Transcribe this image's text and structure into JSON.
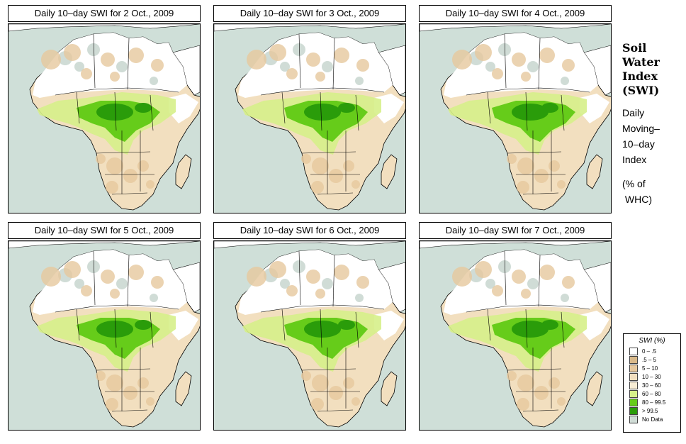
{
  "panels": [
    {
      "title": "Daily 10–day SWI for  2 Oct., 2009"
    },
    {
      "title": "Daily 10–day SWI for  3 Oct., 2009"
    },
    {
      "title": "Daily 10–day SWI for  4 Oct., 2009"
    },
    {
      "title": "Daily 10–day SWI for  5 Oct., 2009"
    },
    {
      "title": "Daily 10–day SWI for  6 Oct., 2009"
    },
    {
      "title": "Daily 10–day SWI for  7 Oct., 2009"
    }
  ],
  "side": {
    "heading_line1": "Soil",
    "heading_line2": "Water",
    "heading_line3": "Index",
    "heading_line4": "(SWI)",
    "desc_line1": "Daily",
    "desc_line2": "Moving–",
    "desc_line3": "10–day",
    "desc_line4": "Index",
    "unit_line1": "(% of",
    "unit_line2": " WHC)"
  },
  "legend": {
    "title": "SWI (%)",
    "items": [
      {
        "label": "0 – .5",
        "color": "#ffffff"
      },
      {
        "label": ".5 – 5",
        "color": "#d9b98a"
      },
      {
        "label": "5 – 10",
        "color": "#e6c89e"
      },
      {
        "label": "10 – 30",
        "color": "#f2dfbf"
      },
      {
        "label": "30 – 60",
        "color": "#f7ecd4"
      },
      {
        "label": "60 – 80",
        "color": "#d6f08a"
      },
      {
        "label": "80 – 99.5",
        "color": "#66cc1a"
      },
      {
        "label": "> 99.5",
        "color": "#2a9c0a"
      },
      {
        "label": "No Data",
        "color": "#d0dcd6"
      }
    ]
  },
  "colors": {
    "ocean": "#cfdfd8",
    "land_dry": "#f2dfbf",
    "land_white": "#ffffff",
    "green_light": "#d6f08a",
    "green_mid": "#66cc1a",
    "green_dark": "#2a9c0a",
    "nodata": "#d0dcd6"
  }
}
